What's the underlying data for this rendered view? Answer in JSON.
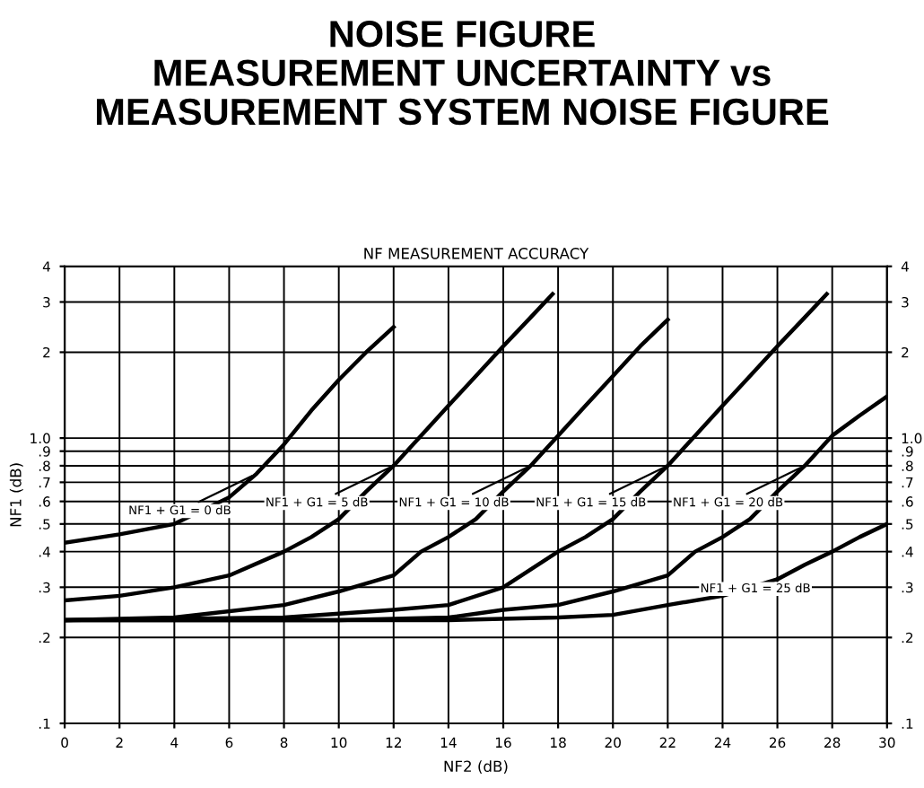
{
  "chart_data": {
    "type": "line",
    "title": "NOISE FIGURE\nMEASUREMENT UNCERTAINTY vs\nMEASUREMENT SYSTEM NOISE FIGURE",
    "subtitle": "NF MEASUREMENT ACCURACY",
    "xlabel": "NF2 (dB)",
    "ylabel": "NF1 (dB)",
    "log": "y",
    "grid": true,
    "marker": "none",
    "line_style": "solid",
    "xlim": [
      0,
      30
    ],
    "xticks": [
      0,
      2,
      4,
      6,
      8,
      10,
      12,
      14,
      16,
      18,
      20,
      22,
      24,
      26,
      28,
      30
    ],
    "ylim": [
      0.1,
      4
    ],
    "yticks": [
      {
        "value": 0.1,
        "label": ".1"
      },
      {
        "value": 0.2,
        "label": ".2"
      },
      {
        "value": 0.3,
        "label": ".3"
      },
      {
        "value": 0.4,
        "label": ".4"
      },
      {
        "value": 0.5,
        "label": ".5"
      },
      {
        "value": 0.6,
        "label": ".6"
      },
      {
        "value": 0.7,
        "label": ".7"
      },
      {
        "value": 0.8,
        "label": ".8"
      },
      {
        "value": 0.9,
        "label": ".9"
      },
      {
        "value": 1,
        "label": "1.0"
      },
      {
        "value": 2,
        "label": "2"
      },
      {
        "value": 3,
        "label": "3"
      },
      {
        "value": 4,
        "label": "4"
      }
    ],
    "annotations": [
      {
        "text": "NF1 + G1 = 0 dB",
        "x": 7,
        "y": 0.75
      },
      {
        "text": "NF1 + G1 = 5 dB",
        "x": 12,
        "y": 0.8
      },
      {
        "text": "NF1 + G1 = 10 dB",
        "x": 17,
        "y": 0.8
      },
      {
        "text": "NF1 + G1 = 15 dB",
        "x": 22,
        "y": 0.8
      },
      {
        "text": "NF1 + G1 = 20 dB",
        "x": 27,
        "y": 0.8
      },
      {
        "text": "NF1 + G1 = 25 dB",
        "x": 28,
        "y": 0.4
      }
    ],
    "series": [
      {
        "color": "#000000",
        "x": [
          0,
          2,
          4,
          6,
          7,
          8,
          9,
          10,
          11,
          12
        ],
        "values": [
          0.43,
          0.46,
          0.5,
          0.62,
          0.75,
          0.95,
          1.25,
          1.6,
          2.0,
          2.45
        ]
      },
      {
        "color": "#000000",
        "x": [
          0,
          2,
          4,
          6,
          8,
          9,
          10,
          11,
          12,
          13,
          14,
          15,
          16,
          17,
          17.8
        ],
        "values": [
          0.27,
          0.28,
          0.3,
          0.33,
          0.4,
          0.45,
          0.52,
          0.65,
          0.8,
          1.02,
          1.3,
          1.65,
          2.1,
          2.65,
          3.2
        ]
      },
      {
        "color": "#000000",
        "x": [
          0,
          4,
          8,
          10,
          12,
          13,
          14,
          15,
          16,
          17,
          18,
          19,
          20,
          21,
          22
        ],
        "values": [
          0.23,
          0.235,
          0.26,
          0.29,
          0.33,
          0.4,
          0.45,
          0.52,
          0.65,
          0.8,
          1.02,
          1.3,
          1.65,
          2.1,
          2.6
        ]
      },
      {
        "color": "#000000",
        "x": [
          0,
          8,
          12,
          14,
          16,
          18,
          19,
          20,
          21,
          22,
          23,
          24,
          25,
          26,
          27,
          27.8
        ],
        "values": [
          0.23,
          0.235,
          0.25,
          0.26,
          0.3,
          0.4,
          0.45,
          0.52,
          0.65,
          0.8,
          1.02,
          1.3,
          1.65,
          2.1,
          2.65,
          3.2
        ]
      },
      {
        "color": "#000000",
        "x": [
          0,
          10,
          14,
          16,
          18,
          20,
          22,
          23,
          24,
          25,
          26,
          27,
          28,
          29,
          30
        ],
        "values": [
          0.23,
          0.23,
          0.235,
          0.25,
          0.26,
          0.29,
          0.33,
          0.4,
          0.45,
          0.52,
          0.65,
          0.8,
          1.02,
          1.2,
          1.4
        ]
      },
      {
        "color": "#000000",
        "x": [
          0,
          14,
          18,
          20,
          22,
          24,
          26,
          27,
          28,
          29,
          30
        ],
        "values": [
          0.23,
          0.23,
          0.235,
          0.24,
          0.26,
          0.28,
          0.32,
          0.36,
          0.4,
          0.45,
          0.5
        ]
      }
    ]
  }
}
